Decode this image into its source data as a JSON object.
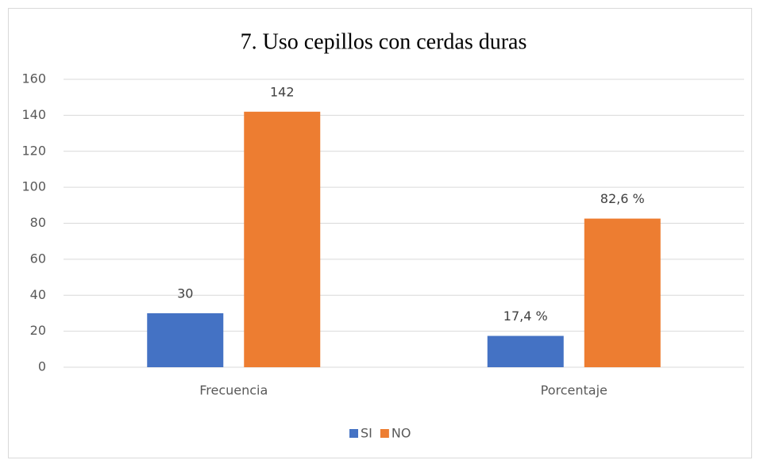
{
  "chart_data": {
    "type": "bar",
    "title": "7. Uso cepillos con cerdas duras",
    "categories": [
      "Frecuencia",
      "Porcentaje"
    ],
    "series": [
      {
        "name": "SI",
        "color": "#4472c4",
        "values": [
          30,
          17.4
        ],
        "value_labels": [
          "30",
          "17,4 %"
        ]
      },
      {
        "name": "NO",
        "color": "#ed7d31",
        "values": [
          142,
          82.6
        ],
        "value_labels": [
          "142",
          "82,6 %"
        ]
      }
    ],
    "ylim": [
      0,
      160
    ],
    "yticks": [
      0,
      20,
      40,
      60,
      80,
      100,
      120,
      140,
      160
    ],
    "grid": true,
    "legend": "bottom"
  }
}
